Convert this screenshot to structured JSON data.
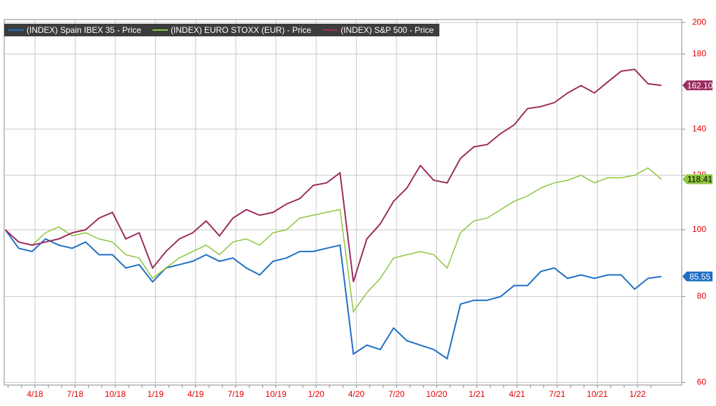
{
  "chart_data": {
    "type": "line",
    "log_scale": true,
    "grid": true,
    "legend": "top-left",
    "categories": [
      null,
      null,
      null,
      "4/18",
      null,
      null,
      "7/18",
      null,
      null,
      "10/18",
      null,
      null,
      "1/19",
      null,
      null,
      "4/19",
      null,
      null,
      "7/19",
      null,
      null,
      "10/19",
      null,
      null,
      "1/20",
      null,
      null,
      "4/20",
      null,
      null,
      "7/20",
      null,
      null,
      "10/20",
      null,
      null,
      "1/21",
      null,
      null,
      "4/21",
      null,
      null,
      "7/21",
      null,
      null,
      "10/21",
      null,
      null,
      "1/22",
      null
    ],
    "ylim": [
      59.5,
      202
    ],
    "yticks": [
      60,
      80,
      100,
      120,
      140,
      180,
      200
    ],
    "series": [
      {
        "name": "(INDEX) Spain IBEX 35 - Price",
        "color": "#1f6fc4",
        "values": [
          100,
          94,
          93,
          97,
          95,
          94,
          96,
          92,
          92,
          88,
          89,
          84,
          88,
          89,
          90,
          92,
          90,
          91,
          88,
          86,
          90,
          91,
          93,
          93,
          94,
          95,
          66,
          68,
          67,
          72,
          69,
          68,
          67,
          65,
          78,
          79,
          79,
          80,
          83,
          83,
          87,
          88,
          85,
          86,
          85,
          86,
          86,
          82,
          85,
          85.55
        ],
        "value_labels": [
          null,
          null,
          null,
          null,
          null,
          null,
          null,
          null,
          null,
          null,
          null,
          null,
          null,
          null,
          null,
          null,
          null,
          null,
          null,
          null,
          null,
          null,
          null,
          null,
          null,
          null,
          null,
          null,
          null,
          null,
          null,
          null,
          null,
          null,
          null,
          null,
          null,
          null,
          null,
          null,
          null,
          null,
          null,
          null,
          null,
          null,
          null,
          null,
          null,
          "85.55"
        ]
      },
      {
        "name": "(INDEX) EURO STOXX (EUR) - Price",
        "color": "#8dc63f",
        "values": [
          100,
          96,
          95,
          99,
          101,
          98,
          99,
          97,
          96,
          92,
          91,
          85,
          88,
          91,
          93,
          95,
          92,
          96,
          97,
          95,
          99,
          100,
          104,
          105,
          106,
          107,
          76,
          81,
          85,
          91,
          92,
          93,
          92,
          88,
          99,
          103,
          104,
          107,
          110,
          112,
          115,
          117,
          118,
          120,
          117,
          119,
          119,
          120,
          123,
          118.41
        ],
        "value_labels": [
          null,
          null,
          null,
          null,
          null,
          null,
          null,
          null,
          null,
          null,
          null,
          null,
          null,
          null,
          null,
          null,
          null,
          null,
          null,
          null,
          null,
          null,
          null,
          null,
          null,
          null,
          null,
          null,
          null,
          null,
          null,
          null,
          null,
          null,
          null,
          null,
          null,
          null,
          null,
          null,
          null,
          null,
          null,
          null,
          null,
          null,
          null,
          null,
          null,
          "118.41"
        ]
      },
      {
        "name": "(INDEX) S&P 500 - Price",
        "color": "#9b2d5e",
        "values": [
          100,
          96,
          95,
          96,
          97,
          99,
          100,
          104,
          106,
          97,
          99,
          88,
          93,
          97,
          99,
          103,
          98,
          104,
          107,
          105,
          106,
          109,
          111,
          116,
          117,
          121,
          84,
          97,
          102,
          110,
          115,
          124,
          118,
          117,
          127,
          132,
          133,
          138,
          142,
          150,
          151,
          153,
          158,
          162,
          158,
          164,
          170,
          171,
          163,
          162.1
        ],
        "value_labels": [
          null,
          null,
          null,
          null,
          null,
          null,
          null,
          null,
          null,
          null,
          null,
          null,
          null,
          null,
          null,
          null,
          null,
          null,
          null,
          null,
          null,
          null,
          null,
          null,
          null,
          null,
          null,
          null,
          null,
          null,
          null,
          null,
          null,
          null,
          null,
          null,
          null,
          null,
          null,
          null,
          null,
          null,
          null,
          null,
          null,
          null,
          null,
          null,
          null,
          "162.10"
        ]
      }
    ]
  }
}
